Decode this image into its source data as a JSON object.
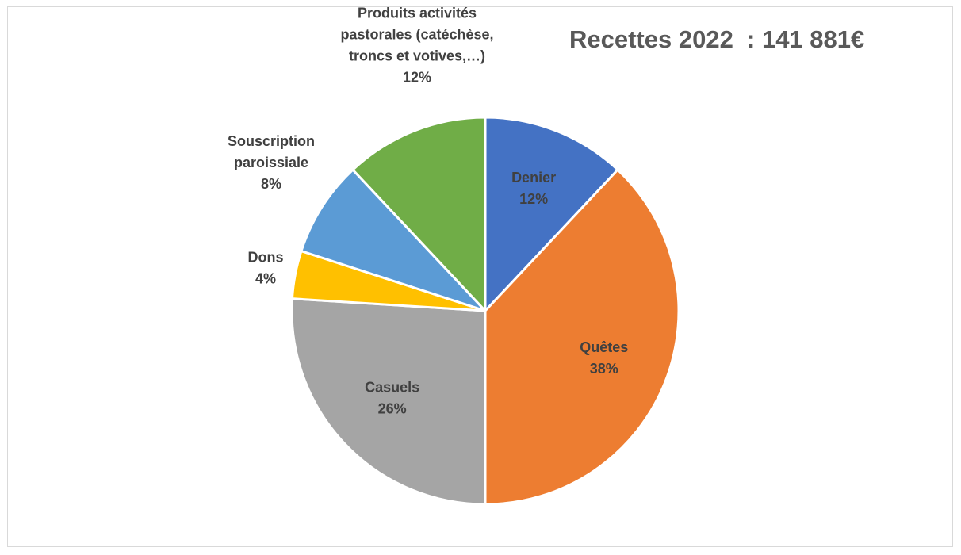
{
  "chart_data": {
    "type": "pie",
    "title": "Recettes 2022  : 141 881€",
    "start_angle_deg": 0,
    "direction": "clockwise",
    "slices": [
      {
        "name": "Denier",
        "label_lines": [
          "Denier"
        ],
        "value": 12,
        "percent_label": "12%",
        "color": "#4472c4",
        "label_color": "#404040",
        "label_position": "inside"
      },
      {
        "name": "Quêtes",
        "label_lines": [
          "Quêtes"
        ],
        "value": 38,
        "percent_label": "38%",
        "color": "#ed7d31",
        "label_color": "#404040",
        "label_position": "inside"
      },
      {
        "name": "Casuels",
        "label_lines": [
          "Casuels"
        ],
        "value": 26,
        "percent_label": "26%",
        "color": "#a5a5a5",
        "label_color": "#404040",
        "label_position": "inside"
      },
      {
        "name": "Dons",
        "label_lines": [
          "Dons"
        ],
        "value": 4,
        "percent_label": "4%",
        "color": "#ffc000",
        "label_color": "#404040",
        "label_position": "outside"
      },
      {
        "name": "Souscription paroissiale",
        "label_lines": [
          "Souscription",
          "paroissiale"
        ],
        "value": 8,
        "percent_label": "8%",
        "color": "#5b9bd5",
        "label_color": "#404040",
        "label_position": "outside"
      },
      {
        "name": "Produits activités pastorales (catéchèse, troncs et votives,…)",
        "label_lines": [
          "Produits activités",
          "pastorales (catéchèse,",
          "troncs et votives,…)"
        ],
        "value": 12,
        "percent_label": "12%",
        "color": "#70ad47",
        "label_color": "#404040",
        "label_position": "outside"
      }
    ]
  }
}
